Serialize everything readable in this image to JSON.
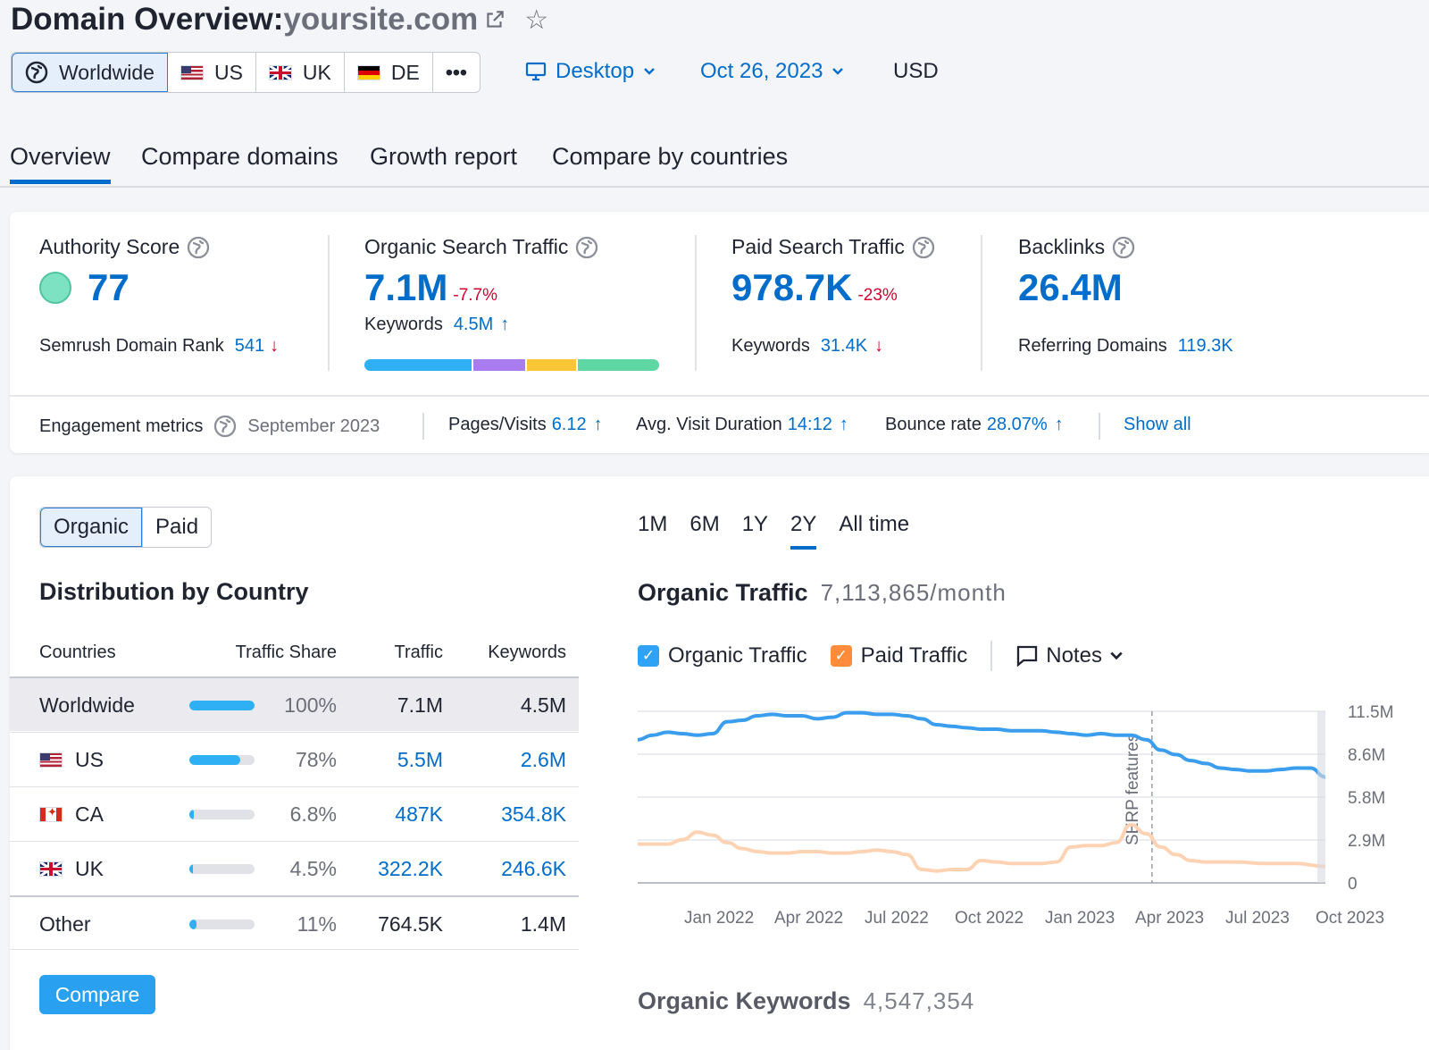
{
  "header": {
    "title_prefix": "Domain Overview:",
    "domain": "yoursite.com",
    "icons": [
      "external-link-icon",
      "star-icon"
    ]
  },
  "databases": [
    {
      "label": "Worldwide",
      "icon": "globe-icon",
      "active": true
    },
    {
      "label": "US",
      "icon": "flag-us"
    },
    {
      "label": "UK",
      "icon": "flag-uk"
    },
    {
      "label": "DE",
      "icon": "flag-de"
    },
    {
      "label": "•••",
      "icon": "more-icon"
    }
  ],
  "filters": {
    "device": "Desktop",
    "date": "Oct 26, 2023",
    "currency": "USD"
  },
  "tabs": [
    "Overview",
    "Compare domains",
    "Growth report",
    "Compare by countries"
  ],
  "summary": {
    "authority": {
      "label": "Authority Score",
      "value": "77",
      "rank_label": "Semrush Domain Rank",
      "rank_value": "541",
      "rank_arrow": "↓"
    },
    "organic": {
      "label": "Organic Search Traffic",
      "value": "7.1M",
      "change": "-7.7%",
      "kw_label": "Keywords",
      "kw_value": "4.5M",
      "kw_arrow": "↑",
      "kw_bar": [
        {
          "color": "#2fb0f5",
          "share": 0.37
        },
        {
          "color": "#a97cf0",
          "share": 0.18
        },
        {
          "color": "#f8c636",
          "share": 0.17
        },
        {
          "color": "#5ed7a5",
          "share": 0.28
        }
      ]
    },
    "paid": {
      "label": "Paid Search Traffic",
      "value": "978.7K",
      "change": "-23%",
      "kw_label": "Keywords",
      "kw_value": "31.4K",
      "kw_arrow": "↓"
    },
    "backlinks": {
      "label": "Backlinks",
      "value": "26.4M",
      "ref_label": "Referring Domains",
      "ref_value": "119.3K"
    }
  },
  "engagement": {
    "label": "Engagement metrics",
    "period": "September 2023",
    "pages_label": "Pages/Visits",
    "pages_value": "6.12",
    "pages_arrow": "↑",
    "duration_label": "Avg. Visit Duration",
    "duration_value": "14:12",
    "duration_arrow": "↑",
    "bounce_label": "Bounce rate",
    "bounce_value": "28.07%",
    "bounce_arrow": "↑",
    "show_all": "Show all"
  },
  "type_toggle": {
    "organic": "Organic",
    "paid": "Paid"
  },
  "distribution": {
    "title": "Distribution by Country",
    "headers": {
      "countries": "Countries",
      "share": "Traffic Share",
      "traffic": "Traffic",
      "keywords": "Keywords"
    },
    "rows": [
      {
        "country": "Worldwide",
        "flag": "",
        "share": "100%",
        "share_value": 1.0,
        "traffic": "7.1M",
        "keywords": "4.5M"
      },
      {
        "country": "US",
        "flag": "flag-us",
        "share": "78%",
        "share_value": 0.78,
        "traffic": "5.5M",
        "keywords": "2.6M"
      },
      {
        "country": "CA",
        "flag": "flag-ca",
        "share": "6.8%",
        "share_value": 0.068,
        "traffic": "487K",
        "keywords": "354.8K"
      },
      {
        "country": "UK",
        "flag": "flag-uk",
        "share": "4.5%",
        "share_value": 0.045,
        "traffic": "322.2K",
        "keywords": "246.6K"
      },
      {
        "country": "Other",
        "flag": "",
        "share": "11%",
        "share_value": 0.11,
        "traffic": "764.5K",
        "keywords": "1.4M"
      }
    ],
    "compare_button": "Compare"
  },
  "periods": [
    "1M",
    "6M",
    "1Y",
    "2Y",
    "All time"
  ],
  "active_period": "2Y",
  "traffic_title": "Organic Traffic",
  "traffic_value": "7,113,865/month",
  "legend": {
    "organic": "Organic Traffic",
    "paid": "Paid Traffic",
    "notes": "Notes"
  },
  "keywords_title": "Organic Keywords",
  "keywords_value": "4,547,354",
  "chart_data": {
    "type": "line",
    "y_ticks": [
      "11.5M",
      "8.6M",
      "5.8M",
      "2.9M",
      "0"
    ],
    "ylim": [
      0,
      11.5
    ],
    "x_ticks": [
      "Jan 2022",
      "Apr 2022",
      "Jul 2022",
      "Oct 2022",
      "Jan 2023",
      "Apr 2023",
      "Jul 2023",
      "Oct 2023"
    ],
    "annotation": "SERP features",
    "annotation_x": 17.2,
    "series": [
      {
        "name": "Organic Traffic",
        "color": "#3b9ded",
        "x": [
          0,
          0.5,
          1,
          1.5,
          2,
          2.5,
          3,
          3.5,
          4,
          4.5,
          5,
          5.5,
          6,
          6.5,
          7,
          7.5,
          8,
          8.5,
          9,
          9.5,
          10,
          10.5,
          11,
          11.5,
          12,
          12.5,
          13,
          13.5,
          14,
          14.5,
          15,
          15.5,
          16,
          16.5,
          17,
          17.5,
          18,
          18.5,
          19,
          19.5,
          20,
          20.5,
          21,
          21.5,
          22,
          22.5,
          23
        ],
        "values": [
          9.6,
          9.9,
          10.1,
          10.0,
          9.9,
          10.0,
          10.8,
          10.9,
          11.2,
          11.3,
          11.2,
          11.2,
          11.0,
          11.1,
          11.4,
          11.4,
          11.3,
          11.3,
          11.2,
          11.0,
          10.6,
          10.5,
          10.4,
          10.3,
          10.3,
          10.2,
          10.2,
          10.2,
          10.1,
          10.0,
          9.9,
          10.0,
          9.9,
          9.9,
          9.6,
          8.9,
          8.6,
          8.2,
          8.0,
          7.7,
          7.6,
          7.5,
          7.5,
          7.6,
          7.7,
          7.7,
          7.1
        ]
      },
      {
        "name": "Paid Traffic",
        "color": "#fdd3b4",
        "x": [
          0,
          1,
          1.5,
          2,
          2.5,
          3,
          3.5,
          4,
          4.5,
          5,
          5.5,
          6,
          6.5,
          7,
          7.5,
          8,
          8.5,
          9,
          9.5,
          10,
          10.5,
          11,
          11.5,
          12,
          12.5,
          13,
          13.5,
          14,
          14.5,
          15,
          15.5,
          16,
          16.5,
          17,
          17.5,
          18,
          18.5,
          19,
          19.5,
          20,
          21,
          22,
          23
        ],
        "values": [
          2.6,
          2.6,
          2.9,
          3.4,
          3.2,
          2.7,
          2.3,
          2.1,
          2.0,
          2.0,
          2.1,
          2.1,
          2.0,
          2.0,
          2.1,
          2.2,
          2.1,
          1.9,
          0.9,
          0.8,
          0.9,
          0.9,
          1.5,
          1.4,
          1.3,
          1.3,
          1.3,
          1.4,
          2.4,
          2.5,
          2.5,
          2.7,
          3.9,
          3.3,
          2.4,
          1.9,
          1.5,
          1.4,
          1.4,
          1.4,
          1.3,
          1.3,
          1.1
        ]
      }
    ]
  }
}
